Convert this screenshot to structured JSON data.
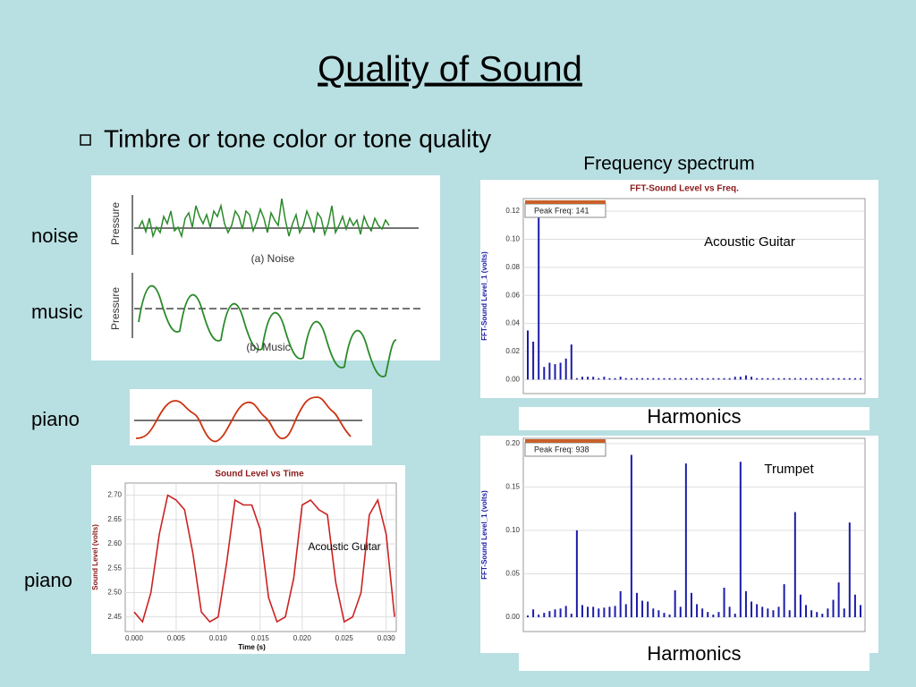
{
  "title": "Quality of Sound",
  "bullet": "Timbre or tone color or tone quality",
  "spectrum_heading": "Frequency spectrum",
  "side_labels": [
    "noise",
    "music",
    "piano",
    "piano"
  ],
  "harmonics_labels": [
    "Harmonics",
    "Harmonics"
  ],
  "waveform_figure": {
    "panels": [
      {
        "axis_label": "Pressure",
        "caption": "(a) Noise"
      },
      {
        "axis_label": "Pressure",
        "caption": "(b) Music"
      }
    ]
  },
  "chart_data": [
    {
      "type": "line",
      "title": "Sound Level vs Time",
      "xlabel": "Time (s)",
      "ylabel": "Sound Level (volts)",
      "annotation": "Acoustic Guitar",
      "color": "#cc2222",
      "grid": true,
      "x": [
        0.0,
        0.001,
        0.002,
        0.003,
        0.004,
        0.005,
        0.006,
        0.007,
        0.008,
        0.009,
        0.01,
        0.011,
        0.012,
        0.013,
        0.014,
        0.015,
        0.016,
        0.017,
        0.018,
        0.019,
        0.02,
        0.021,
        0.022,
        0.023,
        0.024,
        0.025,
        0.026,
        0.027,
        0.028,
        0.029,
        0.03,
        0.031
      ],
      "values": [
        2.46,
        2.44,
        2.5,
        2.62,
        2.7,
        2.69,
        2.67,
        2.58,
        2.46,
        2.44,
        2.45,
        2.56,
        2.69,
        2.68,
        2.68,
        2.63,
        2.49,
        2.44,
        2.45,
        2.53,
        2.68,
        2.69,
        2.67,
        2.66,
        2.52,
        2.44,
        2.45,
        2.5,
        2.66,
        2.69,
        2.62,
        2.45
      ],
      "xlim": [
        -0.00106,
        0.0312
      ],
      "ylim": [
        2.42,
        2.725
      ],
      "xticks": [
        {
          "value": 0,
          "label": "0.000"
        },
        {
          "value": 0.005,
          "label": "0.005"
        },
        {
          "value": 0.01,
          "label": "0.010"
        },
        {
          "value": 0.015,
          "label": "0.015"
        },
        {
          "value": 0.02,
          "label": "0.020"
        },
        {
          "value": 0.025,
          "label": "0.025"
        },
        {
          "value": 0.03,
          "label": "0.030"
        }
      ],
      "yticks": [
        2.45,
        {
          "value": 2.5,
          "label": "2.50"
        },
        2.55,
        {
          "value": 2.6,
          "label": "2.60"
        },
        2.65,
        {
          "value": 2.7,
          "label": "2.70"
        }
      ]
    },
    {
      "type": "stem",
      "title": "FFT-Sound Level vs Freq.",
      "ylabel": "FFT-Sound Level_1 (volts)",
      "annotation": "Acoustic Guitar",
      "peak_label": "Peak Freq: 141",
      "color": "#1c1ca8",
      "grid": true,
      "values": [
        0.035,
        0.027,
        0.118,
        0.009,
        0.012,
        0.011,
        0.012,
        0.015,
        0.025,
        0.001,
        0.002,
        0.002,
        0.002,
        0.001,
        0.002,
        0.001,
        0.001,
        0.002,
        0.001,
        0.001,
        0.001,
        0.001,
        0.001,
        0.001,
        0.001,
        0.001,
        0.001,
        0.001,
        0.001,
        0.001,
        0.001,
        0.001,
        0.001,
        0.001,
        0.001,
        0.001,
        0.001,
        0.001,
        0.002,
        0.002,
        0.003,
        0.002,
        0.001,
        0.001,
        0.001,
        0.001,
        0.001,
        0.001,
        0.001,
        0.001,
        0.001,
        0.001,
        0.001,
        0.001,
        0.001,
        0.001,
        0.001,
        0.001,
        0.001,
        0.001,
        0.001,
        0.001
      ],
      "ylim": [
        -0.01,
        0.129
      ],
      "yticks": [
        {
          "value": 0,
          "label": "0.00"
        },
        0.02,
        0.04,
        0.06,
        0.08,
        {
          "value": 0.1,
          "label": "0.10"
        },
        0.12
      ]
    },
    {
      "type": "stem",
      "title": "",
      "ylabel": "FFT-Sound Level_1 (volts)",
      "annotation": "Trumpet",
      "peak_label": "Peak Freq: 938",
      "color": "#1c1ca8",
      "grid": true,
      "values": [
        0.002,
        0.009,
        0.003,
        0.005,
        0.007,
        0.009,
        0.01,
        0.013,
        0.004,
        0.1,
        0.014,
        0.012,
        0.012,
        0.01,
        0.011,
        0.012,
        0.013,
        0.03,
        0.015,
        0.187,
        0.028,
        0.019,
        0.018,
        0.01,
        0.008,
        0.005,
        0.003,
        0.031,
        0.012,
        0.177,
        0.028,
        0.015,
        0.01,
        0.006,
        0.003,
        0.006,
        0.034,
        0.012,
        0.004,
        0.179,
        0.03,
        0.018,
        0.015,
        0.012,
        0.01,
        0.008,
        0.012,
        0.038,
        0.008,
        0.121,
        0.026,
        0.014,
        0.008,
        0.006,
        0.004,
        0.01,
        0.02,
        0.04,
        0.01,
        0.109,
        0.026,
        0.014
      ],
      "ylim": [
        -0.0165,
        0.206
      ],
      "yticks": [
        {
          "value": 0,
          "label": "0.00"
        },
        0.05,
        {
          "value": 0.1,
          "label": "0.10"
        },
        0.15,
        {
          "value": 0.2,
          "label": "0.20"
        }
      ]
    }
  ]
}
